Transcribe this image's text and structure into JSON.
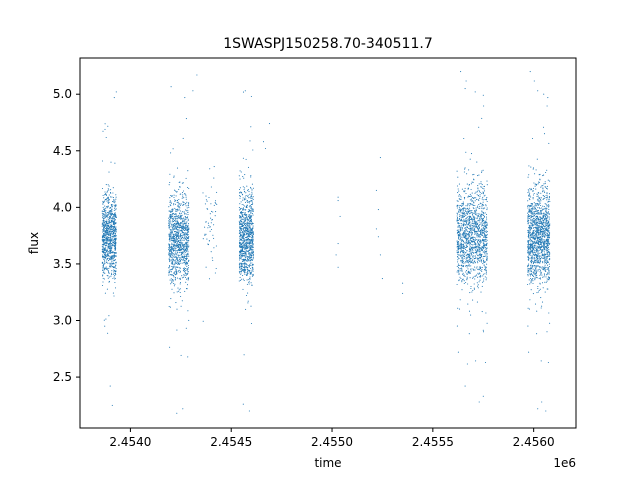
{
  "chart_data": {
    "type": "scatter",
    "title": "1SWASPJ150258.70-340511.7",
    "xlabel": "time",
    "ylabel": "flux",
    "x_offset_label": "1e6",
    "xlim": [
      2.45375,
      2.45621
    ],
    "ylim": [
      2.05,
      5.32
    ],
    "x_ticks": [
      2.454,
      2.4545,
      2.455,
      2.4555,
      2.456
    ],
    "x_tick_labels": [
      "2.4540",
      "2.4545",
      "2.4550",
      "2.4555",
      "2.4560"
    ],
    "y_ticks": [
      2.5,
      3.0,
      3.5,
      4.0,
      4.5,
      5.0
    ],
    "y_tick_labels": [
      "2.5",
      "3.0",
      "3.5",
      "4.0",
      "4.5",
      "5.0"
    ],
    "grid": false,
    "legend": "none",
    "marker_color": "#1f77b4",
    "series": [
      {
        "clusters": [
          {
            "x_range": [
              2.45386,
              2.45393
            ],
            "center": 3.75,
            "spread": 0.24,
            "count": 900
          },
          {
            "x_range": [
              2.45419,
              2.45429
            ],
            "center": 3.72,
            "spread": 0.26,
            "count": 1000
          },
          {
            "x_range": [
              2.45436,
              2.45443
            ],
            "center": 3.85,
            "spread": 0.3,
            "count": 60
          },
          {
            "x_range": [
              2.45454,
              2.45461
            ],
            "center": 3.75,
            "spread": 0.26,
            "count": 900
          },
          {
            "x_range": [
              2.45562,
              2.45577
            ],
            "center": 3.75,
            "spread": 0.28,
            "count": 1300
          },
          {
            "x_range": [
              2.45597,
              2.45608
            ],
            "center": 3.75,
            "spread": 0.28,
            "count": 1300
          }
        ],
        "points": [
          {
            "x": 2.45393,
            "y": 5.02
          },
          {
            "x": 2.45392,
            "y": 4.97
          },
          {
            "x": 2.45391,
            "y": 2.25
          },
          {
            "x": 2.4539,
            "y": 2.42
          },
          {
            "x": 2.45423,
            "y": 2.18
          },
          {
            "x": 2.45426,
            "y": 2.22
          },
          {
            "x": 2.45427,
            "y": 4.97
          },
          {
            "x": 2.45431,
            "y": 5.03
          },
          {
            "x": 2.45433,
            "y": 5.17
          },
          {
            "x": 2.45457,
            "y": 5.03
          },
          {
            "x": 2.4546,
            "y": 4.98
          },
          {
            "x": 2.45459,
            "y": 2.2
          },
          {
            "x": 2.45456,
            "y": 2.26
          },
          {
            "x": 2.45466,
            "y": 4.58
          },
          {
            "x": 2.45467,
            "y": 4.52
          },
          {
            "x": 2.45469,
            "y": 4.74
          },
          {
            "x": 2.45503,
            "y": 4.09
          },
          {
            "x": 2.45503,
            "y": 4.06
          },
          {
            "x": 2.45504,
            "y": 3.92
          },
          {
            "x": 2.45502,
            "y": 3.58
          },
          {
            "x": 2.45503,
            "y": 3.47
          },
          {
            "x": 2.45503,
            "y": 3.68
          },
          {
            "x": 2.45522,
            "y": 4.15
          },
          {
            "x": 2.45522,
            "y": 3.81
          },
          {
            "x": 2.45523,
            "y": 3.74
          },
          {
            "x": 2.45523,
            "y": 3.98
          },
          {
            "x": 2.45524,
            "y": 4.44
          },
          {
            "x": 2.45524,
            "y": 3.58
          },
          {
            "x": 2.45525,
            "y": 3.37
          },
          {
            "x": 2.45535,
            "y": 3.33
          },
          {
            "x": 2.45535,
            "y": 3.24
          },
          {
            "x": 2.45566,
            "y": 5.05
          },
          {
            "x": 2.45571,
            "y": 5.02
          },
          {
            "x": 2.45575,
            "y": 4.99
          },
          {
            "x": 2.45566,
            "y": 2.42
          },
          {
            "x": 2.45573,
            "y": 2.28
          },
          {
            "x": 2.45575,
            "y": 2.33
          },
          {
            "x": 2.45602,
            "y": 5.03
          },
          {
            "x": 2.45605,
            "y": 5.0
          },
          {
            "x": 2.45607,
            "y": 4.97
          },
          {
            "x": 2.45602,
            "y": 2.22
          },
          {
            "x": 2.45604,
            "y": 2.28
          },
          {
            "x": 2.45606,
            "y": 2.2
          }
        ]
      }
    ]
  }
}
